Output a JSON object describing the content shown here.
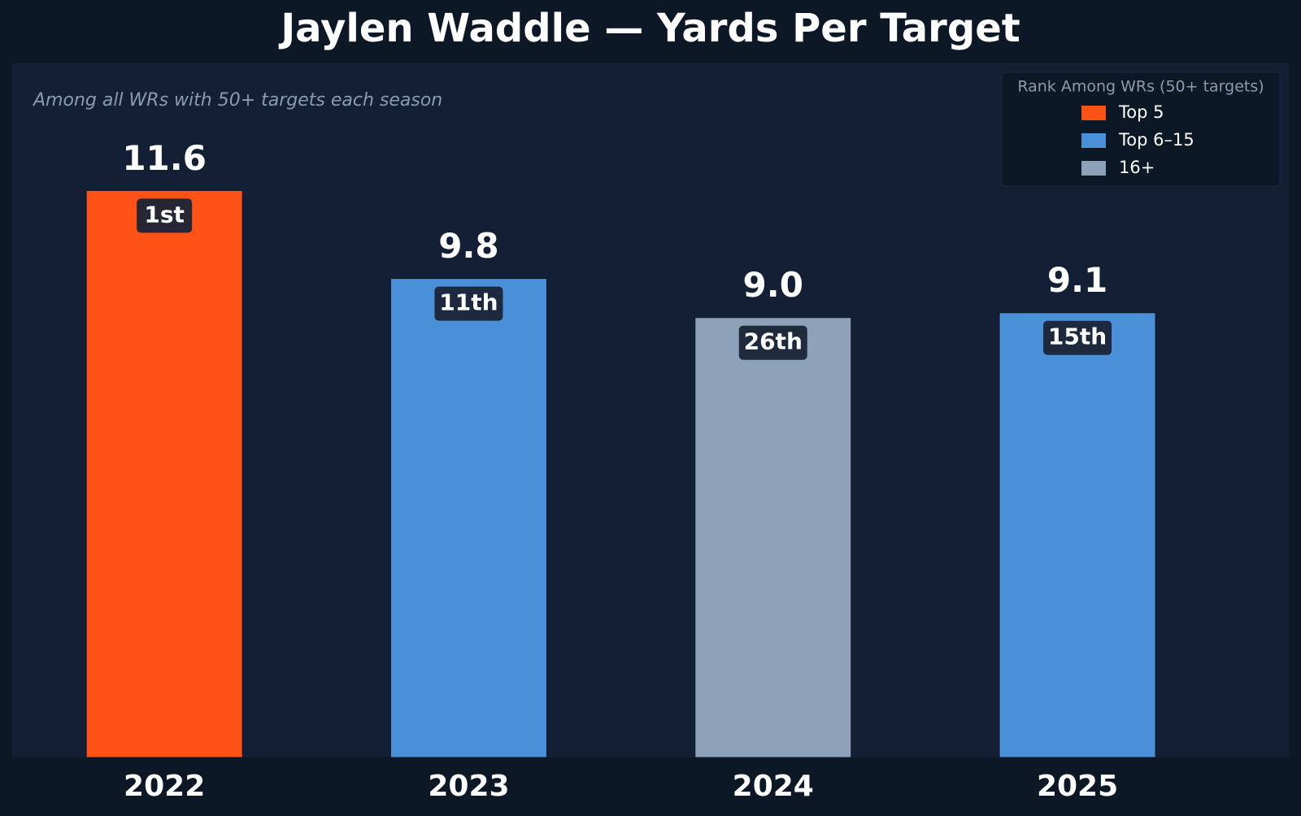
{
  "chart_data": {
    "type": "bar",
    "title": "Jaylen Waddle — Yards Per Target",
    "subtitle": "Among all WRs with 50+ targets each season",
    "categories": [
      "2022",
      "2023",
      "2024",
      "2025"
    ],
    "values": [
      11.6,
      9.8,
      9.0,
      9.1
    ],
    "value_labels": [
      "11.6",
      "9.8",
      "9.0",
      "9.1"
    ],
    "colors": [
      "#ff5216",
      "#4a90d9",
      "#8da1b9",
      "#4a90d9"
    ],
    "ranks": [
      "1st",
      "11th",
      "26th",
      "15th"
    ],
    "ylim": [
      0,
      14.2
    ],
    "legend": {
      "title": "Rank Among WRs (50+ targets)",
      "position": "upper right",
      "entries": [
        {
          "name": "Top 5",
          "color": "#ff5216"
        },
        {
          "name": "Top 6–15",
          "color": "#4a90d9"
        },
        {
          "name": "16+",
          "color": "#8da1b9"
        }
      ]
    }
  }
}
